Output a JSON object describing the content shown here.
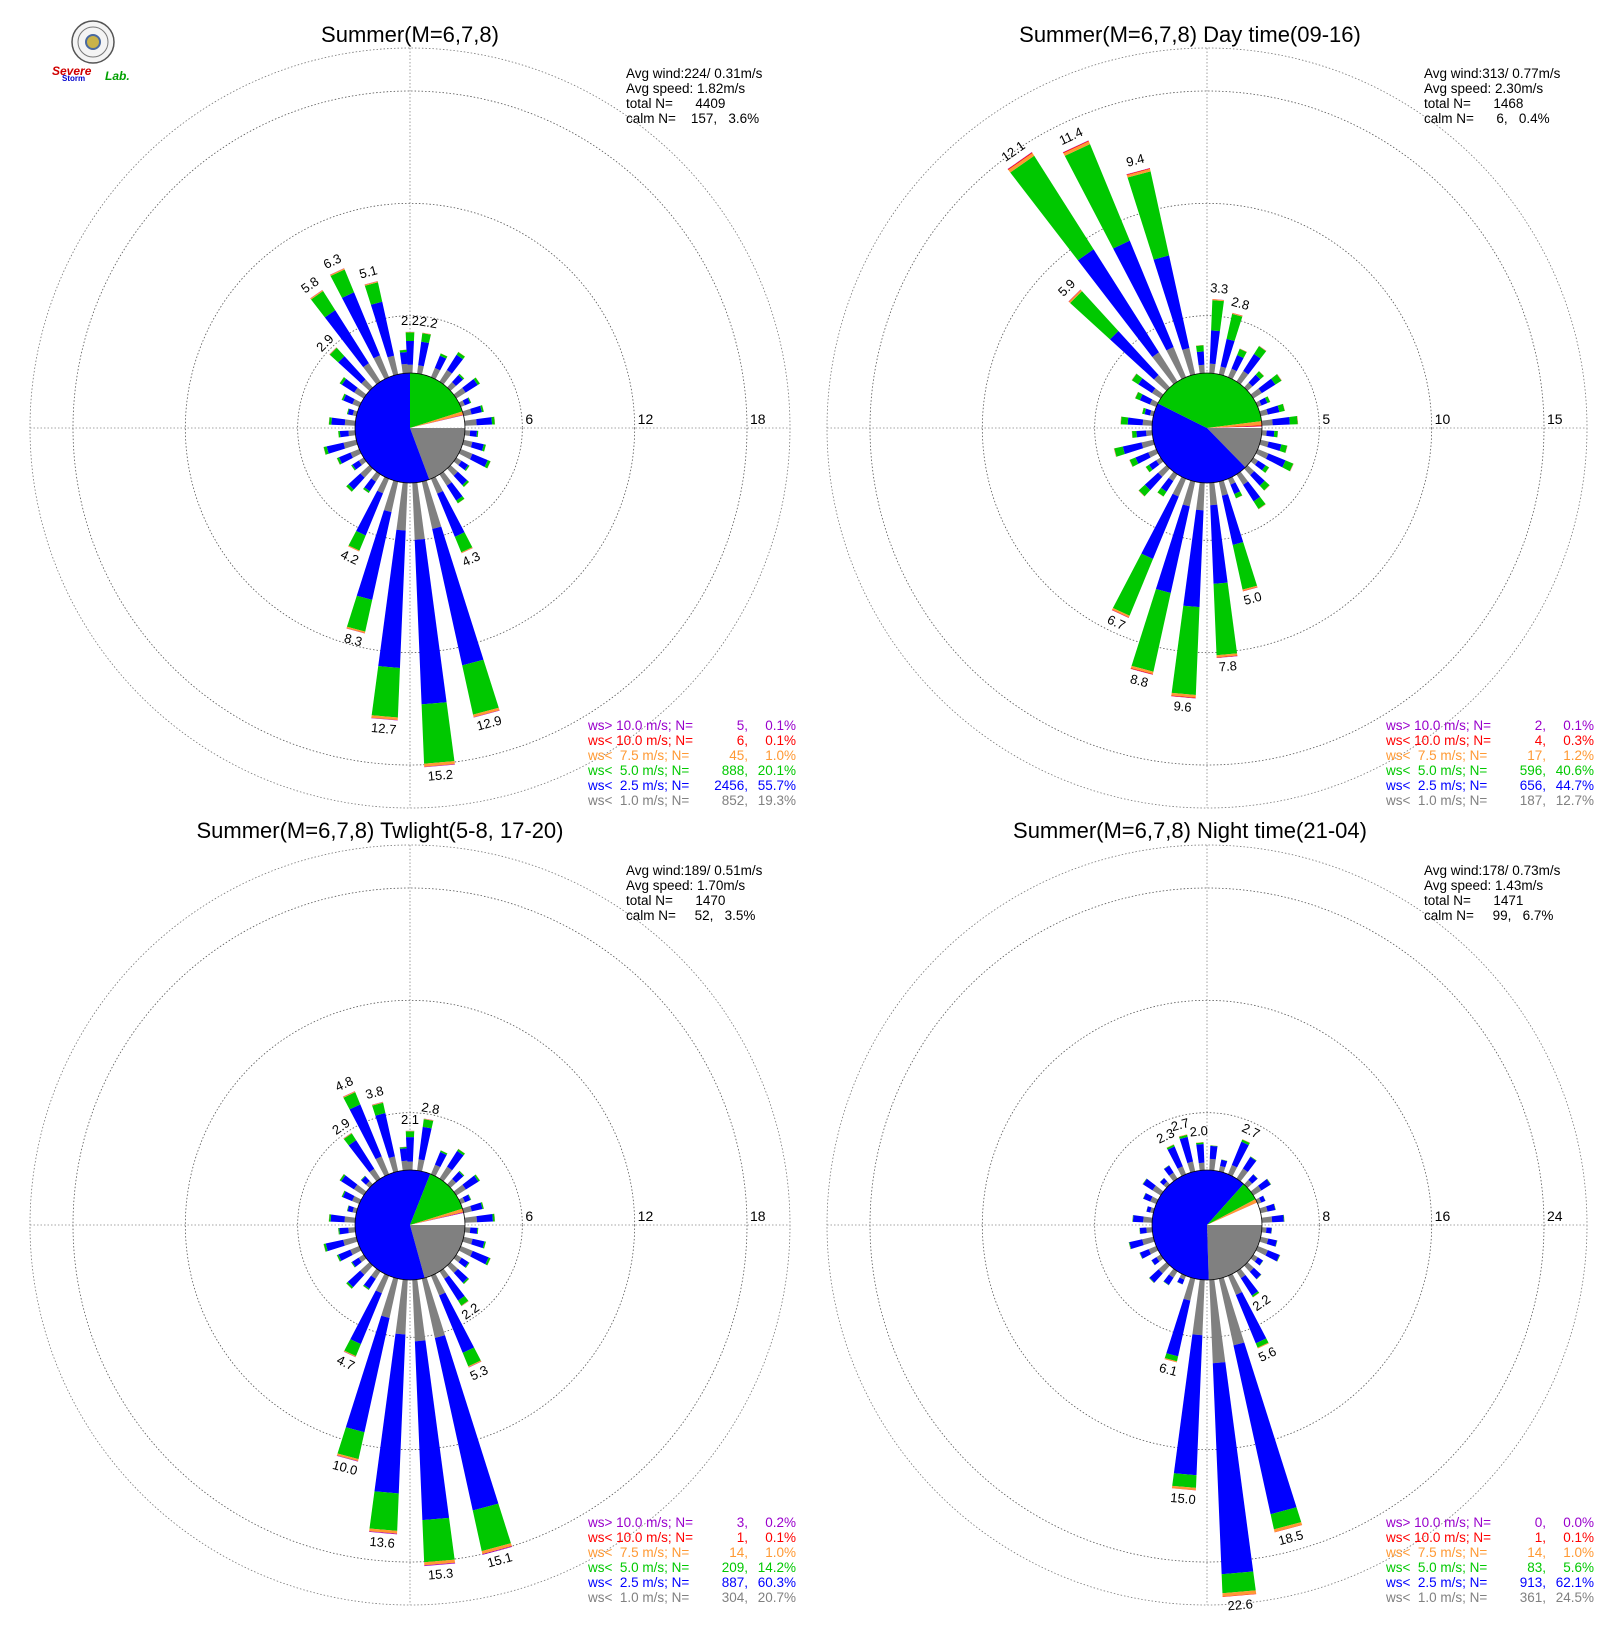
{
  "logo": {
    "emblem": "university-seal-icon",
    "text_line1": "Severe",
    "text_line2": "Storm",
    "text_line3": "Lab."
  },
  "colors": {
    "calm_le1": "#808080",
    "le2_5": "#0000ff",
    "le5": "#00c800",
    "le7_5": "#ff9933",
    "le10": "#ff0000",
    "gt10": "#9900cc",
    "ring": "#666666",
    "axis": "#888888"
  },
  "chart_data": [
    {
      "type": "wind-rose",
      "title": "Summer(M=6,7,8)",
      "stats": {
        "avg_wind": "Avg wind:224/ 0.31m/s",
        "avg_speed": "Avg speed: 1.82m/s",
        "total": "total N=      4409",
        "calm": "calm N=    157,   3.6%"
      },
      "ring_values": [
        6,
        12,
        18
      ],
      "ring_labels": [
        "6",
        "12",
        "18"
      ],
      "max_value": 18,
      "pie": [
        {
          "class": "le1",
          "pct": 19.3
        },
        {
          "class": "le2_5",
          "pct": 55.7
        },
        {
          "class": "le5",
          "pct": 20.1
        },
        {
          "class": "le7_5",
          "pct": 1.0
        },
        {
          "class": "le10",
          "pct": 0.1
        },
        {
          "class": "gt10",
          "pct": 0.1
        },
        {
          "class": "calm",
          "pct": 3.6
        }
      ],
      "labeled_bars": [
        {
          "dir": 10,
          "total": 2.2,
          "label": "2.2"
        },
        {
          "dir": 0,
          "total": 2.2,
          "label": "2.2"
        },
        {
          "dir": 345,
          "total": 5.1,
          "label": "5.1"
        },
        {
          "dir": 335,
          "total": 6.3,
          "label": "6.3"
        },
        {
          "dir": 325,
          "total": 5.8,
          "label": "5.8"
        },
        {
          "dir": 315,
          "total": 2.9,
          "label": "2.9"
        },
        {
          "dir": 155,
          "total": 4.3,
          "label": "4.3"
        },
        {
          "dir": 165,
          "total": 12.9,
          "label": "12.9"
        },
        {
          "dir": 175,
          "total": 15.2,
          "label": "15.2"
        },
        {
          "dir": 185,
          "total": 12.7,
          "label": "12.7"
        },
        {
          "dir": 195,
          "total": 8.3,
          "label": "8.3"
        },
        {
          "dir": 205,
          "total": 4.2,
          "label": "4.2"
        }
      ],
      "legend": [
        {
          "label": "ws> 10.0 m/s; N=",
          "count": "5",
          "pct": "0.1%",
          "color": "#9900cc"
        },
        {
          "label": "ws< 10.0 m/s; N=",
          "count": "6",
          "pct": "0.1%",
          "color": "#ff0000"
        },
        {
          "label": "ws<  7.5 m/s; N=",
          "count": "45",
          "pct": "1.0%",
          "color": "#ff9933"
        },
        {
          "label": "ws<  5.0 m/s; N=",
          "count": "888",
          "pct": "20.1%",
          "color": "#00c800"
        },
        {
          "label": "ws<  2.5 m/s; N=",
          "count": "2456",
          "pct": "55.7%",
          "color": "#0000ff"
        },
        {
          "label": "ws<  1.0 m/s; N=",
          "count": "852",
          "pct": "19.3%",
          "color": "#808080"
        }
      ]
    },
    {
      "type": "wind-rose",
      "title": "Summer(M=6,7,8) Day time(09-16)",
      "stats": {
        "avg_wind": "Avg wind:313/ 0.77m/s",
        "avg_speed": "Avg speed: 2.30m/s",
        "total": "total N=      1468",
        "calm": "calm N=      6,   0.4%"
      },
      "ring_values": [
        5,
        10,
        15
      ],
      "ring_labels": [
        "5",
        "10",
        "15"
      ],
      "max_value": 15,
      "pie": [
        {
          "class": "le1",
          "pct": 12.7
        },
        {
          "class": "le2_5",
          "pct": 44.7
        },
        {
          "class": "le5",
          "pct": 40.6
        },
        {
          "class": "le7_5",
          "pct": 1.2
        },
        {
          "class": "le10",
          "pct": 0.3
        },
        {
          "class": "gt10",
          "pct": 0.1
        },
        {
          "class": "calm",
          "pct": 0.4
        }
      ],
      "labeled_bars": [
        {
          "dir": 15,
          "total": 2.8,
          "label": "2.8"
        },
        {
          "dir": 5,
          "total": 3.3,
          "label": "3.3"
        },
        {
          "dir": 345,
          "total": 9.4,
          "label": "9.4"
        },
        {
          "dir": 335,
          "total": 11.4,
          "label": "11.4"
        },
        {
          "dir": 325,
          "total": 12.1,
          "label": "12.1"
        },
        {
          "dir": 315,
          "total": 5.9,
          "label": "5.9"
        },
        {
          "dir": 165,
          "total": 5.0,
          "label": "5.0"
        },
        {
          "dir": 175,
          "total": 7.8,
          "label": "7.8"
        },
        {
          "dir": 185,
          "total": 9.6,
          "label": "9.6"
        },
        {
          "dir": 195,
          "total": 8.8,
          "label": "8.8"
        },
        {
          "dir": 205,
          "total": 6.7,
          "label": "6.7"
        }
      ],
      "legend": [
        {
          "label": "ws> 10.0 m/s; N=",
          "count": "2",
          "pct": "0.1%",
          "color": "#9900cc"
        },
        {
          "label": "ws< 10.0 m/s; N=",
          "count": "4",
          "pct": "0.3%",
          "color": "#ff0000"
        },
        {
          "label": "ws<  7.5 m/s; N=",
          "count": "17",
          "pct": "1.2%",
          "color": "#ff9933"
        },
        {
          "label": "ws<  5.0 m/s; N=",
          "count": "596",
          "pct": "40.6%",
          "color": "#00c800"
        },
        {
          "label": "ws<  2.5 m/s; N=",
          "count": "656",
          "pct": "44.7%",
          "color": "#0000ff"
        },
        {
          "label": "ws<  1.0 m/s; N=",
          "count": "187",
          "pct": "12.7%",
          "color": "#808080"
        }
      ]
    },
    {
      "type": "wind-rose",
      "title": "Summer(M=6,7,8) Twlight(5-8, 17-20)",
      "stats": {
        "avg_wind": "Avg wind:189/ 0.51m/s",
        "avg_speed": "Avg speed: 1.70m/s",
        "total": "total N=      1470",
        "calm": "calm N=     52,   3.5%"
      },
      "ring_values": [
        6,
        12,
        18
      ],
      "ring_labels": [
        "6",
        "12",
        "18"
      ],
      "max_value": 18,
      "pie": [
        {
          "class": "le1",
          "pct": 20.7
        },
        {
          "class": "le2_5",
          "pct": 60.3
        },
        {
          "class": "le5",
          "pct": 14.2
        },
        {
          "class": "le7_5",
          "pct": 1.0
        },
        {
          "class": "le10",
          "pct": 0.1
        },
        {
          "class": "gt10",
          "pct": 0.2
        },
        {
          "class": "calm",
          "pct": 3.5
        }
      ],
      "labeled_bars": [
        {
          "dir": 10,
          "total": 2.8,
          "label": "2.8"
        },
        {
          "dir": 0,
          "total": 2.1,
          "label": "2.1"
        },
        {
          "dir": 345,
          "total": 3.8,
          "label": "3.8"
        },
        {
          "dir": 335,
          "total": 4.8,
          "label": "4.8"
        },
        {
          "dir": 325,
          "total": 2.9,
          "label": "2.9"
        },
        {
          "dir": 145,
          "total": 2.2,
          "label": "2.2"
        },
        {
          "dir": 155,
          "total": 5.3,
          "label": "5.3"
        },
        {
          "dir": 165,
          "total": 15.1,
          "label": "15.1"
        },
        {
          "dir": 175,
          "total": 15.3,
          "label": "15.3"
        },
        {
          "dir": 185,
          "total": 13.6,
          "label": "13.6"
        },
        {
          "dir": 195,
          "total": 10.0,
          "label": "10.0"
        },
        {
          "dir": 205,
          "total": 4.7,
          "label": "4.7"
        }
      ],
      "legend": [
        {
          "label": "ws> 10.0 m/s; N=",
          "count": "3",
          "pct": "0.2%",
          "color": "#9900cc"
        },
        {
          "label": "ws< 10.0 m/s; N=",
          "count": "1",
          "pct": "0.1%",
          "color": "#ff0000"
        },
        {
          "label": "ws<  7.5 m/s; N=",
          "count": "14",
          "pct": "1.0%",
          "color": "#ff9933"
        },
        {
          "label": "ws<  5.0 m/s; N=",
          "count": "209",
          "pct": "14.2%",
          "color": "#00c800"
        },
        {
          "label": "ws<  2.5 m/s; N=",
          "count": "887",
          "pct": "60.3%",
          "color": "#0000ff"
        },
        {
          "label": "ws<  1.0 m/s; N=",
          "count": "304",
          "pct": "20.7%",
          "color": "#808080"
        }
      ]
    },
    {
      "type": "wind-rose",
      "title": "Summer(M=6,7,8) Night time(21-04)",
      "stats": {
        "avg_wind": "Avg wind:178/ 0.73m/s",
        "avg_speed": "Avg speed: 1.43m/s",
        "total": "total N=      1471",
        "calm": "calm N=     99,   6.7%"
      },
      "ring_values": [
        8,
        16,
        24
      ],
      "ring_labels": [
        "8",
        "16",
        "24"
      ],
      "max_value": 24,
      "pie": [
        {
          "class": "le1",
          "pct": 24.5
        },
        {
          "class": "le2_5",
          "pct": 62.1
        },
        {
          "class": "le5",
          "pct": 5.6
        },
        {
          "class": "le7_5",
          "pct": 1.0
        },
        {
          "class": "le10",
          "pct": 0.1
        },
        {
          "class": "gt10",
          "pct": 0.0
        },
        {
          "class": "calm",
          "pct": 6.7
        }
      ],
      "labeled_bars": [
        {
          "dir": 25,
          "total": 2.7,
          "label": "2.7"
        },
        {
          "dir": 355,
          "total": 2.0,
          "label": "2.0"
        },
        {
          "dir": 345,
          "total": 2.7,
          "label": "2.7"
        },
        {
          "dir": 335,
          "total": 2.3,
          "label": "2.3"
        },
        {
          "dir": 145,
          "total": 2.2,
          "label": "2.2"
        },
        {
          "dir": 155,
          "total": 5.6,
          "label": "5.6"
        },
        {
          "dir": 165,
          "total": 18.5,
          "label": "18.5"
        },
        {
          "dir": 175,
          "total": 22.6,
          "label": "22.6"
        },
        {
          "dir": 185,
          "total": 15.0,
          "label": "15.0"
        },
        {
          "dir": 195,
          "total": 6.1,
          "label": "6.1"
        }
      ],
      "legend": [
        {
          "label": "ws> 10.0 m/s; N=",
          "count": "0",
          "pct": "0.0%",
          "color": "#9900cc"
        },
        {
          "label": "ws< 10.0 m/s; N=",
          "count": "1",
          "pct": "0.1%",
          "color": "#ff0000"
        },
        {
          "label": "ws<  7.5 m/s; N=",
          "count": "14",
          "pct": "1.0%",
          "color": "#ff9933"
        },
        {
          "label": "ws<  5.0 m/s; N=",
          "count": "83",
          "pct": "5.6%",
          "color": "#00c800"
        },
        {
          "label": "ws<  2.5 m/s; N=",
          "count": "913",
          "pct": "62.1%",
          "color": "#0000ff"
        },
        {
          "label": "ws<  1.0 m/s; N=",
          "count": "361",
          "pct": "24.5%",
          "color": "#808080"
        }
      ]
    }
  ]
}
